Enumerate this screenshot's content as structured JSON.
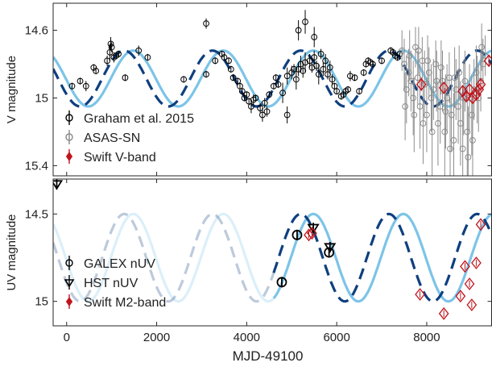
{
  "chart_data": [
    {
      "type": "scatter",
      "panel": "top",
      "xlabel": "",
      "ylabel": "V magnitude",
      "xlim": [
        -300,
        9450
      ],
      "ylim": [
        15.46,
        14.44
      ],
      "y_inverted": true,
      "xticks": [
        0,
        2000,
        4000,
        6000,
        8000
      ],
      "show_xtick_labels": false,
      "yticks": [
        {
          "value": 14.6,
          "label": "14.6"
        },
        {
          "value": 15.0,
          "label": "15"
        },
        {
          "value": 15.4,
          "label": "15.4"
        }
      ],
      "grid": false,
      "legend_placement": "bottom-left",
      "legend": [
        {
          "label": "Graham et al. 2015",
          "marker": "circle",
          "color": "#000000"
        },
        {
          "label": "ASAS-SN",
          "marker": "circle",
          "color": "#888888"
        },
        {
          "label": "Swift V-band",
          "marker": "diamond",
          "color": "#c0141c"
        }
      ],
      "models": [
        {
          "style": "solid",
          "color": "#7cc4e8",
          "mean": 14.885,
          "amp": 0.165,
          "period": 2000,
          "phase": 1480,
          "x_range": [
            -300,
            9450
          ]
        },
        {
          "style": "dashed",
          "color": "#0e3f7f",
          "mean": 14.885,
          "amp": 0.165,
          "period": 1960,
          "phase": 1280,
          "x_range": [
            -300,
            9450
          ]
        }
      ],
      "series": [
        {
          "name": "Graham et al. 2015",
          "marker": "circle",
          "x": [
            120,
            300,
            430,
            600,
            650,
            900,
            960,
            980,
            1000,
            1050,
            1100,
            1150,
            1300,
            1600,
            1800,
            2600,
            3100,
            3300,
            3450,
            3500,
            3600,
            3650,
            3700,
            3800,
            3850,
            3900,
            3950,
            4000,
            4050,
            4100,
            4150,
            4200,
            4300,
            4350,
            4400,
            4450,
            4500,
            4600,
            4650,
            4700,
            4800,
            4900,
            5000,
            5050,
            5100,
            5150,
            5200,
            5250,
            5300,
            5400,
            5450,
            5500,
            5550,
            5600,
            5650,
            5700,
            5750,
            5800,
            5850,
            5900,
            5950,
            6000,
            6100,
            6150,
            6200,
            6250,
            6300,
            6400,
            6500,
            6600,
            6650,
            6700,
            6750,
            6800,
            7000,
            7200,
            7250,
            7300,
            7350,
            7400,
            4900,
            5150,
            5300,
            5500,
            3100
          ],
          "y": [
            14.93,
            14.9,
            14.93,
            14.82,
            14.84,
            14.78,
            14.73,
            14.68,
            14.7,
            14.76,
            14.75,
            14.74,
            14.88,
            14.72,
            14.76,
            14.89,
            14.86,
            14.78,
            14.74,
            14.76,
            14.78,
            14.83,
            14.88,
            14.9,
            14.93,
            14.96,
            15.0,
            14.98,
            15.02,
            15.05,
            15.01,
            15.0,
            15.06,
            15.1,
            15.03,
            15.08,
            14.98,
            14.93,
            14.88,
            14.92,
            14.97,
            14.87,
            14.85,
            14.83,
            14.89,
            14.83,
            14.8,
            14.84,
            14.79,
            14.78,
            14.82,
            14.76,
            14.81,
            14.86,
            14.74,
            14.83,
            14.78,
            14.86,
            14.82,
            14.89,
            14.93,
            14.96,
            14.99,
            14.98,
            14.96,
            14.95,
            14.87,
            14.88,
            14.96,
            14.85,
            14.8,
            14.78,
            14.79,
            14.8,
            14.78,
            14.72,
            14.73,
            14.75,
            14.76,
            14.74,
            15.1,
            14.6,
            14.55,
            14.64,
            14.56
          ],
          "err": [
            0.02,
            0.02,
            0.03,
            0.02,
            0.02,
            0.03,
            0.05,
            0.04,
            0.03,
            0.03,
            0.02,
            0.02,
            0.02,
            0.03,
            0.02,
            0.02,
            0.02,
            0.02,
            0.02,
            0.02,
            0.02,
            0.02,
            0.02,
            0.02,
            0.02,
            0.02,
            0.02,
            0.02,
            0.02,
            0.04,
            0.03,
            0.02,
            0.03,
            0.04,
            0.03,
            0.03,
            0.02,
            0.02,
            0.02,
            0.02,
            0.06,
            0.05,
            0.04,
            0.03,
            0.06,
            0.04,
            0.05,
            0.04,
            0.06,
            0.04,
            0.03,
            0.04,
            0.03,
            0.06,
            0.03,
            0.04,
            0.04,
            0.03,
            0.04,
            0.03,
            0.02,
            0.02,
            0.02,
            0.02,
            0.02,
            0.02,
            0.03,
            0.02,
            0.02,
            0.02,
            0.02,
            0.02,
            0.02,
            0.02,
            0.02,
            0.02,
            0.02,
            0.02,
            0.02,
            0.02,
            0.05,
            0.06,
            0.07,
            0.06,
            0.03
          ]
        },
        {
          "name": "ASAS-SN",
          "marker": "circle",
          "x": [
            7450,
            7500,
            7550,
            7600,
            7650,
            7700,
            7750,
            7800,
            7850,
            7900,
            7950,
            8000,
            8050,
            8100,
            8150,
            8200,
            8250,
            8300,
            8350,
            8400,
            8450,
            8500,
            8550,
            8600,
            8650,
            8700,
            8750,
            8800,
            8850,
            8900,
            8950,
            9000,
            9050,
            9100,
            9150,
            9200,
            9250,
            9300,
            7520,
            7620,
            7720,
            7820,
            7920,
            8020,
            8120,
            8220,
            8320,
            8420,
            8520,
            8620,
            8720,
            8820,
            8920,
            9020,
            9120,
            9220
          ],
          "y": [
            14.72,
            14.8,
            14.95,
            14.85,
            14.9,
            15.0,
            14.7,
            14.88,
            15.05,
            14.78,
            14.92,
            15.1,
            14.85,
            15.0,
            14.95,
            14.8,
            15.15,
            15.05,
            14.9,
            15.2,
            15.0,
            14.88,
            15.1,
            15.25,
            14.95,
            15.05,
            15.15,
            15.3,
            14.9,
            15.2,
            15.0,
            15.1,
            14.95,
            14.85,
            15.0,
            14.9,
            14.8,
            14.75,
            15.05,
            14.75,
            15.1,
            14.72,
            15.15,
            14.78,
            15.2,
            14.9,
            14.82,
            15.08,
            15.3,
            14.88,
            14.85,
            15.0,
            15.35,
            15.25,
            14.95,
            14.7
          ],
          "err": [
            0.12,
            0.15,
            0.2,
            0.14,
            0.18,
            0.22,
            0.12,
            0.16,
            0.25,
            0.14,
            0.2,
            0.22,
            0.15,
            0.2,
            0.18,
            0.14,
            0.25,
            0.22,
            0.18,
            0.26,
            0.2,
            0.15,
            0.22,
            0.28,
            0.18,
            0.22,
            0.25,
            0.3,
            0.18,
            0.26,
            0.2,
            0.24,
            0.18,
            0.16,
            0.2,
            0.18,
            0.15,
            0.12,
            0.2,
            0.15,
            0.22,
            0.14,
            0.24,
            0.15,
            0.26,
            0.18,
            0.16,
            0.22,
            0.3,
            0.18,
            0.16,
            0.22,
            0.3,
            0.28,
            0.2,
            0.14
          ]
        },
        {
          "name": "Swift V-band",
          "marker": "diamond",
          "x": [
            7880,
            8380,
            8800,
            8880,
            8950,
            9020,
            9100,
            9160,
            9200,
            9380
          ],
          "y": [
            14.92,
            14.94,
            14.96,
            14.99,
            14.95,
            15.0,
            14.98,
            14.95,
            14.92,
            14.78
          ],
          "err": [
            0.04,
            0.03,
            0.03,
            0.03,
            0.03,
            0.03,
            0.03,
            0.03,
            0.03,
            0.03
          ]
        }
      ]
    },
    {
      "type": "scatter",
      "panel": "bottom",
      "xlabel": "MJD-49100",
      "ylabel": "UV magnitude",
      "xlim": [
        -300,
        9450
      ],
      "ylim": [
        15.14,
        14.3
      ],
      "y_inverted": true,
      "xticks": [
        {
          "value": 0,
          "label": "0"
        },
        {
          "value": 2000,
          "label": "2000"
        },
        {
          "value": 4000,
          "label": "4000"
        },
        {
          "value": 6000,
          "label": "6000"
        },
        {
          "value": 8000,
          "label": "8000"
        }
      ],
      "yticks": [
        {
          "value": 14.5,
          "label": "14.5"
        },
        {
          "value": 15.0,
          "label": "15"
        }
      ],
      "grid": false,
      "legend_placement": "bottom-left",
      "legend": [
        {
          "label": "GALEX nUV",
          "marker": "circle",
          "color": "#000000"
        },
        {
          "label": "HST nUV",
          "marker": "down-triangle",
          "color": "#000000"
        },
        {
          "label": "Swift M2-band",
          "marker": "diamond",
          "color": "#c0141c"
        }
      ],
      "models": [
        {
          "style": "solid",
          "color": "#7cc4e8",
          "faded_before": 4600,
          "mean": 14.75,
          "amp": 0.25,
          "period": 2000,
          "phase": 1480,
          "x_range": [
            -300,
            9450
          ]
        },
        {
          "style": "dashed",
          "color": "#0e3f7f",
          "faded_before": 4600,
          "mean": 14.75,
          "amp": 0.25,
          "period": 1960,
          "phase": 1280,
          "x_range": [
            -300,
            9450
          ]
        }
      ],
      "series": [
        {
          "name": "GALEX nUV",
          "marker": "circle",
          "x": [
            4780,
            5120,
            5830
          ],
          "y": [
            14.89,
            14.62,
            14.72
          ],
          "err": [
            0.03,
            0.03,
            0.03
          ]
        },
        {
          "name": "HST nUV",
          "marker": "down-triangle",
          "x": [
            -220,
            5480,
            5850
          ],
          "y": [
            14.33,
            14.58,
            14.69
          ],
          "err": [
            0.03,
            0.03,
            0.03
          ]
        },
        {
          "name": "Swift M2-band",
          "marker": "diamond",
          "x": [
            5380,
            5450,
            7850,
            8380,
            8750,
            8850,
            8950,
            9000,
            9100,
            9200
          ],
          "y": [
            14.62,
            14.61,
            14.96,
            15.07,
            14.97,
            14.8,
            14.9,
            15.02,
            14.78,
            14.56
          ],
          "err": [
            0.02,
            0.02,
            0.02,
            0.02,
            0.02,
            0.02,
            0.02,
            0.02,
            0.02,
            0.02
          ]
        }
      ]
    }
  ]
}
